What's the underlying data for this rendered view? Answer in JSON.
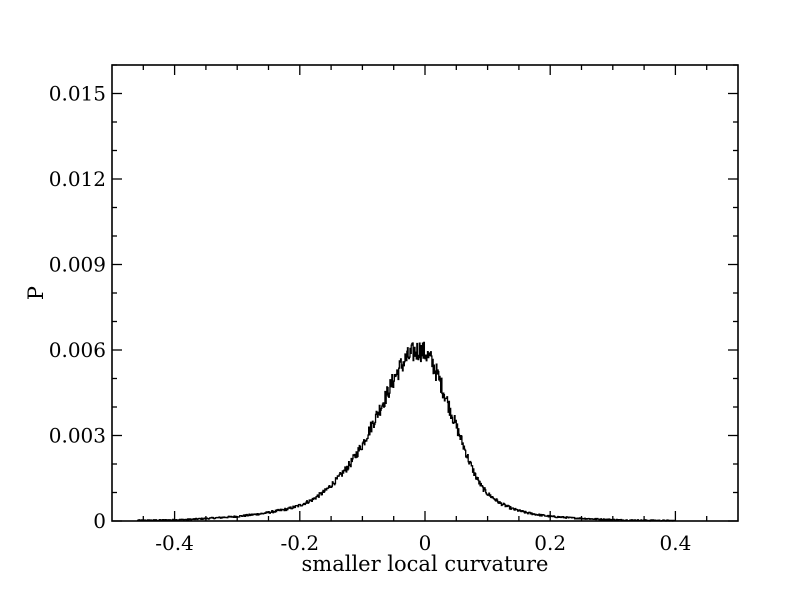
{
  "chart_data": {
    "type": "line",
    "title": "",
    "xlabel": "smaller local curvature",
    "ylabel": "P",
    "xlim": [
      -0.5,
      0.5
    ],
    "ylim": [
      0,
      0.016
    ],
    "xticks": [
      -0.4,
      -0.2,
      0,
      0.2,
      0.4
    ],
    "xtick_labels": [
      "-0.4",
      "-0.2",
      "0",
      "0.2",
      "0.4"
    ],
    "yticks": [
      0,
      0.003,
      0.006,
      0.009,
      0.012,
      0.015
    ],
    "ytick_labels": [
      "0",
      "0.003",
      "0.006",
      "0.009",
      "0.012",
      "0.015"
    ],
    "grid": false,
    "legend": "none",
    "series": [
      {
        "color": "#000000",
        "x": [
          -0.46,
          -0.42,
          -0.38,
          -0.34,
          -0.3,
          -0.26,
          -0.22,
          -0.2,
          -0.18,
          -0.16,
          -0.14,
          -0.12,
          -0.1,
          -0.08,
          -0.06,
          -0.05,
          -0.04,
          -0.03,
          -0.02,
          -0.01,
          0.0,
          0.01,
          0.02,
          0.03,
          0.04,
          0.05,
          0.06,
          0.07,
          0.08,
          0.09,
          0.1,
          0.12,
          0.14,
          0.16,
          0.18,
          0.2,
          0.24,
          0.28,
          0.32,
          0.36,
          0.4
        ],
        "y": [
          2e-05,
          3e-05,
          5e-05,
          0.0001,
          0.00016,
          0.00026,
          0.00042,
          0.00055,
          0.00075,
          0.00105,
          0.00148,
          0.002,
          0.0027,
          0.0036,
          0.0045,
          0.005,
          0.0054,
          0.0057,
          0.0059,
          0.006,
          0.0059,
          0.0056,
          0.0051,
          0.0045,
          0.0039,
          0.0033,
          0.0027,
          0.0021,
          0.0016,
          0.0012,
          0.00095,
          0.00062,
          0.00042,
          0.0003,
          0.00022,
          0.00016,
          0.0001,
          6e-05,
          3e-05,
          2e-05,
          1e-05
        ]
      }
    ]
  }
}
